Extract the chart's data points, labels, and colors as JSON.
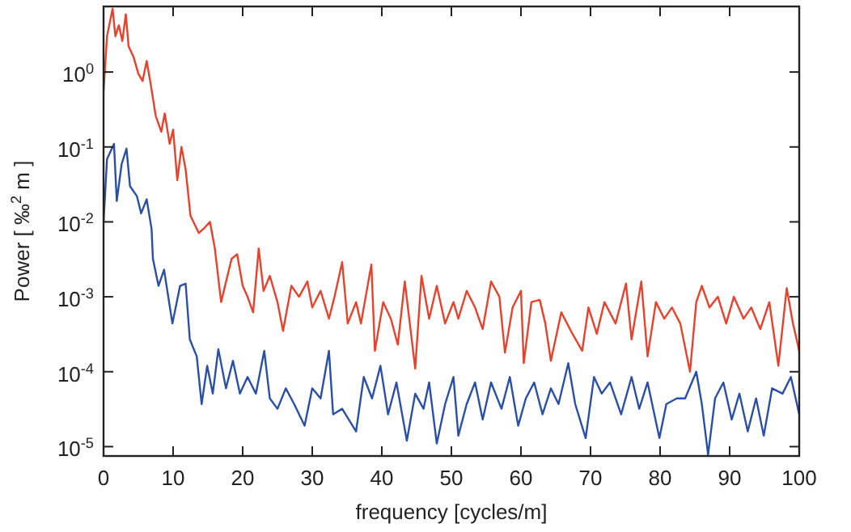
{
  "chart_data": {
    "type": "line",
    "xlabel": "frequency [cycles/m]",
    "ylabel": "Power [ ‰$^{2}$ m ]",
    "log": "y",
    "grid": false,
    "xlim": [
      0,
      100
    ],
    "xticks": [
      0,
      10,
      20,
      30,
      40,
      50,
      60,
      70,
      80,
      90,
      100
    ],
    "ylim": [
      7.5e-06,
      7.5
    ],
    "yticks": [
      {
        "value": 1e-05,
        "label": "10$^{-5}$"
      },
      {
        "value": 0.0001,
        "label": "10$^{-4}$"
      },
      {
        "value": 0.001,
        "label": "10$^{-3}$"
      },
      {
        "value": 0.01,
        "label": "10$^{-2}$"
      },
      {
        "value": 0.1,
        "label": "10$^{-1}$"
      },
      {
        "value": 1,
        "label": "10$^{0}$"
      }
    ],
    "series": [
      {
        "color": "#e8412c",
        "x": [
          0,
          0.5,
          1.3,
          1.7,
          2.2,
          2.7,
          3.2,
          3.6,
          4.3,
          5,
          5.6,
          6.2,
          6.7,
          7.5,
          8.3,
          8.8,
          9.5,
          10,
          10.6,
          11.2,
          11.8,
          12.5,
          13.7,
          14.5,
          15.3,
          16,
          16.9,
          18.4,
          19.2,
          20,
          20.7,
          21.5,
          22.3,
          23,
          23.9,
          25,
          25.8,
          27,
          28.1,
          29.3,
          30,
          31.2,
          32.4,
          33.2,
          34.3,
          35.1,
          36.3,
          37,
          38.5,
          39,
          40.2,
          41.3,
          42.3,
          43.3,
          44.8,
          45.7,
          46.8,
          47.9,
          49.1,
          50.3,
          51,
          52.2,
          53.4,
          54.5,
          55.7,
          56.9,
          57.7,
          58.8,
          60,
          60.4,
          61.5,
          62.7,
          63.5,
          64.3,
          65.8,
          67.4,
          68.8,
          69.7,
          70.9,
          72,
          73.6,
          75.1,
          75.9,
          77.3,
          78.2,
          79.4,
          80.6,
          81.7,
          82.9,
          84.3,
          85.2,
          86,
          87.1,
          88.3,
          89.5,
          90.6,
          92,
          93.1,
          94.4,
          95.7,
          97,
          98.2,
          99.1,
          100
        ],
        "values": [
          0.55,
          3.0,
          7.0,
          3.0,
          4.2,
          2.6,
          5.9,
          2.2,
          1.6,
          0.95,
          0.76,
          1.4,
          0.76,
          0.26,
          0.16,
          0.28,
          0.11,
          0.17,
          0.036,
          0.1,
          0.05,
          0.012,
          0.0071,
          0.0083,
          0.01,
          0.0044,
          0.00085,
          0.0032,
          0.0037,
          0.0014,
          0.001,
          0.00062,
          0.0044,
          0.0012,
          0.0019,
          0.00085,
          0.00035,
          0.0014,
          0.001,
          0.0016,
          0.00072,
          0.0012,
          0.00051,
          0.001,
          0.0029,
          0.00044,
          0.00085,
          0.00044,
          0.0027,
          0.00019,
          0.00085,
          0.00051,
          0.00023,
          0.0016,
          0.00011,
          0.0019,
          0.00051,
          0.0014,
          0.00044,
          0.00085,
          0.00051,
          0.0012,
          0.00072,
          0.00037,
          0.0016,
          0.001,
          0.00018,
          0.00072,
          0.0012,
          0.00013,
          0.00085,
          0.00091,
          0.00044,
          0.00014,
          0.00062,
          0.00032,
          0.00019,
          0.00072,
          0.00032,
          0.00085,
          0.00044,
          0.0015,
          0.00027,
          0.0016,
          0.00016,
          0.00085,
          0.00051,
          0.00072,
          0.00044,
          0.0001,
          0.00085,
          0.0014,
          0.00072,
          0.001,
          0.00044,
          0.001,
          0.00051,
          0.00072,
          0.00037,
          0.00085,
          0.00012,
          0.0013,
          0.00044,
          0.00019
        ]
      },
      {
        "color": "#2a4fa8",
        "x": [
          0,
          0.5,
          1.5,
          1.9,
          2.6,
          3.3,
          3.8,
          4.8,
          5.4,
          6.2,
          6.9,
          7.1,
          7.9,
          8.7,
          9.9,
          11,
          11.8,
          12.4,
          13.4,
          14.1,
          14.9,
          15.7,
          16.5,
          17.6,
          18.6,
          19.6,
          20.7,
          21.9,
          23.1,
          23.9,
          25,
          26.2,
          27.4,
          28.9,
          30,
          31.2,
          32.4,
          33,
          34.3,
          36.3,
          37.4,
          38.6,
          39.8,
          40.9,
          42.1,
          43.6,
          44.8,
          46,
          46.8,
          47.9,
          49.1,
          50.3,
          51,
          52.2,
          53.4,
          54.5,
          55.7,
          57.2,
          58.4,
          59.6,
          60.7,
          61.9,
          63.1,
          64.3,
          65.4,
          66.8,
          67.8,
          69.3,
          70.5,
          71.6,
          72.8,
          74.4,
          75.9,
          77,
          78.2,
          79.9,
          80.9,
          82.4,
          83.6,
          85.2,
          86,
          86.9,
          87.9,
          89.1,
          90.3,
          91.4,
          92.6,
          93.8,
          94.9,
          96.1,
          97.6,
          98.8,
          100
        ],
        "values": [
          0.01,
          0.069,
          0.11,
          0.019,
          0.059,
          0.095,
          0.03,
          0.022,
          0.013,
          0.02,
          0.0081,
          0.0032,
          0.0014,
          0.0023,
          0.00044,
          0.0014,
          0.0015,
          0.00027,
          0.00016,
          3.7e-05,
          0.00012,
          5.1e-05,
          0.0002,
          6e-05,
          0.00014,
          5.1e-05,
          8.5e-05,
          5.1e-05,
          0.00019,
          4.4e-05,
          3.2e-05,
          6e-05,
          3.7e-05,
          1.9e-05,
          6e-05,
          4.4e-05,
          0.00019,
          2.7e-05,
          3.2e-05,
          1.6e-05,
          8.5e-05,
          4.4e-05,
          0.00012,
          2.7e-05,
          7.2e-05,
          1.2e-05,
          5.1e-05,
          3.2e-05,
          7.2e-05,
          1.1e-05,
          3.7e-05,
          8.5e-05,
          1.4e-05,
          3.7e-05,
          7.2e-05,
          2.3e-05,
          7.2e-05,
          3.2e-05,
          8.5e-05,
          1.9e-05,
          4.4e-05,
          7.2e-05,
          2.7e-05,
          6e-05,
          3.7e-05,
          0.00013,
          3.7e-05,
          1.3e-05,
          8.5e-05,
          5.1e-05,
          7.2e-05,
          2.7e-05,
          8.5e-05,
          3.2e-05,
          7.2e-05,
          1.3e-05,
          3.7e-05,
          4.4e-05,
          4.4e-05,
          0.0001,
          3.7e-05,
          7.8e-06,
          4.4e-05,
          7.2e-05,
          2.3e-05,
          5.1e-05,
          1.6e-05,
          4.4e-05,
          1.4e-05,
          6e-05,
          5.1e-05,
          8.5e-05,
          2.7e-05
        ]
      }
    ]
  }
}
